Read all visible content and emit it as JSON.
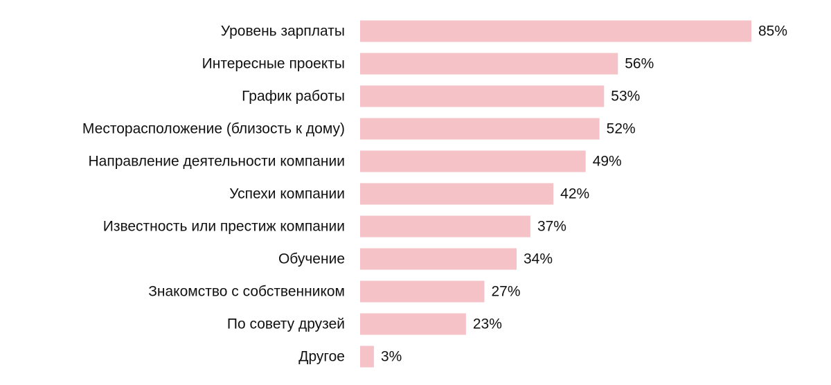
{
  "chart_data": {
    "type": "bar",
    "orientation": "horizontal",
    "categories": [
      "Уровень зарплаты",
      "Интересные проекты",
      "График работы",
      "Месторасположение (близость к дому)",
      "Направление деятельности компании",
      "Успехи компании",
      "Известность или престиж компании",
      "Обучение",
      "Знакомство с собственником",
      "По совету друзей",
      "Другое"
    ],
    "values": [
      85,
      56,
      53,
      52,
      49,
      42,
      37,
      34,
      27,
      23,
      3
    ],
    "value_labels": [
      "85%",
      "56%",
      "53%",
      "52%",
      "49%",
      "42%",
      "37%",
      "34%",
      "27%",
      "23%",
      "3%"
    ],
    "unit": "%",
    "xlim": [
      0,
      85
    ],
    "grid": false,
    "legend": "none",
    "bar_color": "#f5c2c7"
  }
}
